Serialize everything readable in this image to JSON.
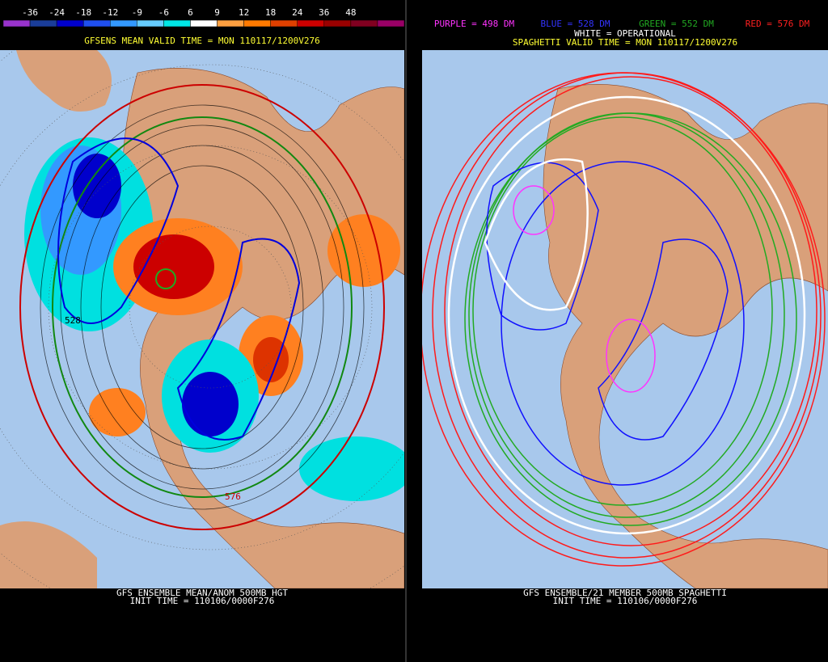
{
  "left": {
    "colorbar": {
      "labels": [
        "-36",
        "-24",
        "-18",
        "-12",
        "-9",
        "-6",
        "6",
        "9",
        "12",
        "18",
        "24",
        "36",
        "48"
      ],
      "colors": [
        "#9933cc",
        "#1a3d99",
        "#0000cc",
        "#1f4ff0",
        "#3399ff",
        "#66ccff",
        "#00e6e6",
        "#ffffff",
        "#ffa040",
        "#ff7a00",
        "#e04000",
        "#cc0000",
        "#990000",
        "#800020",
        "#990066"
      ]
    },
    "title": "GFSENS MEAN VALID TIME = MON 110117/1200V276",
    "contour_labels": [
      "528",
      "576"
    ],
    "footer": [
      "GFS ENSEMBLE MEAN/ANOM 500MB HGT",
      "INIT TIME = 110106/0000F276"
    ]
  },
  "right": {
    "legend": [
      {
        "text": "PURPLE = 498 DM",
        "color": "#ff33ff"
      },
      {
        "text": "BLUE = 528 DM",
        "color": "#3333ff"
      },
      {
        "text": "GREEN = 552 DM",
        "color": "#22aa22"
      },
      {
        "text": "RED = 576 DM",
        "color": "#ff2020"
      }
    ],
    "operational": "WHITE = OPERATIONAL",
    "title": "SPAGHETTI VALID TIME = MON 110117/1200V276",
    "footer": [
      "GFS ENSEMBLE/21 MEMBER 500MB SPAGHETTI",
      "INIT TIME = 110106/0000F276"
    ]
  }
}
